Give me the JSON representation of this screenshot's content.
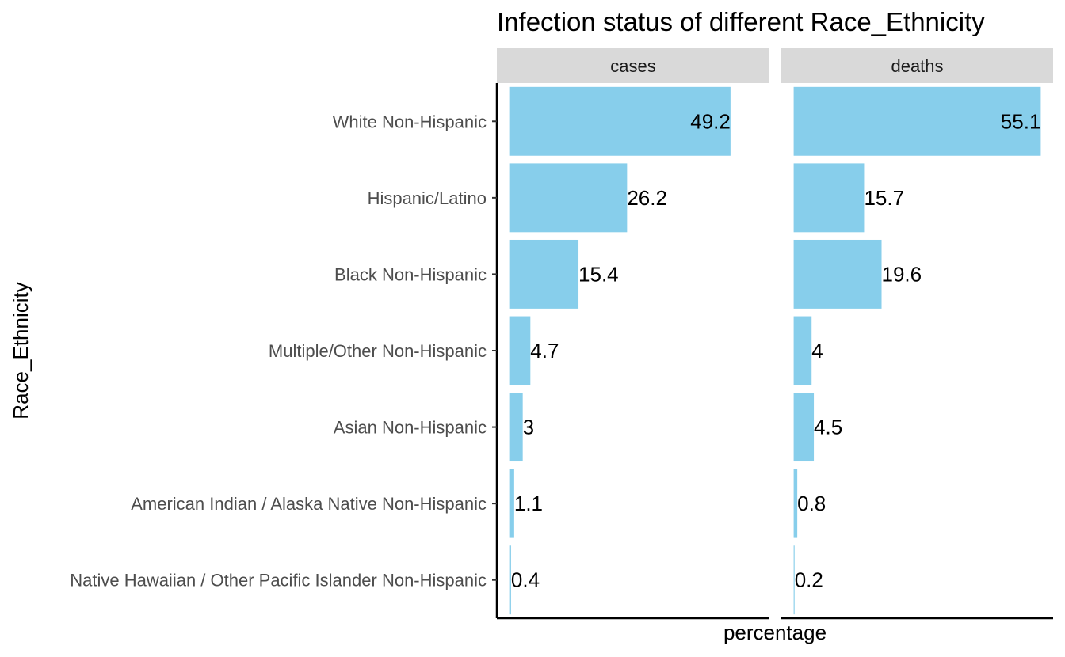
{
  "chart_data": {
    "type": "bar",
    "orientation": "horizontal",
    "title": "Infection status of different Race_Ethnicity",
    "xlabel": "percentage",
    "ylabel": "Race_Ethnicity",
    "categories": [
      "White Non-Hispanic",
      "Hispanic/Latino",
      "Black Non-Hispanic",
      "Multiple/Other Non-Hispanic",
      "Asian Non-Hispanic",
      "American Indian / Alaska Native Non-Hispanic",
      "Native Hawaiian / Other Pacific Islander Non-Hispanic"
    ],
    "facets": [
      {
        "label": "cases",
        "values": [
          49.2,
          26.2,
          15.4,
          4.7,
          3,
          1.1,
          0.4
        ]
      },
      {
        "label": "deaths",
        "values": [
          55.1,
          15.7,
          19.6,
          4,
          4.5,
          0.8,
          0.2
        ]
      }
    ],
    "bar_color": "#87CEEB",
    "grid": false,
    "legend": "none"
  }
}
